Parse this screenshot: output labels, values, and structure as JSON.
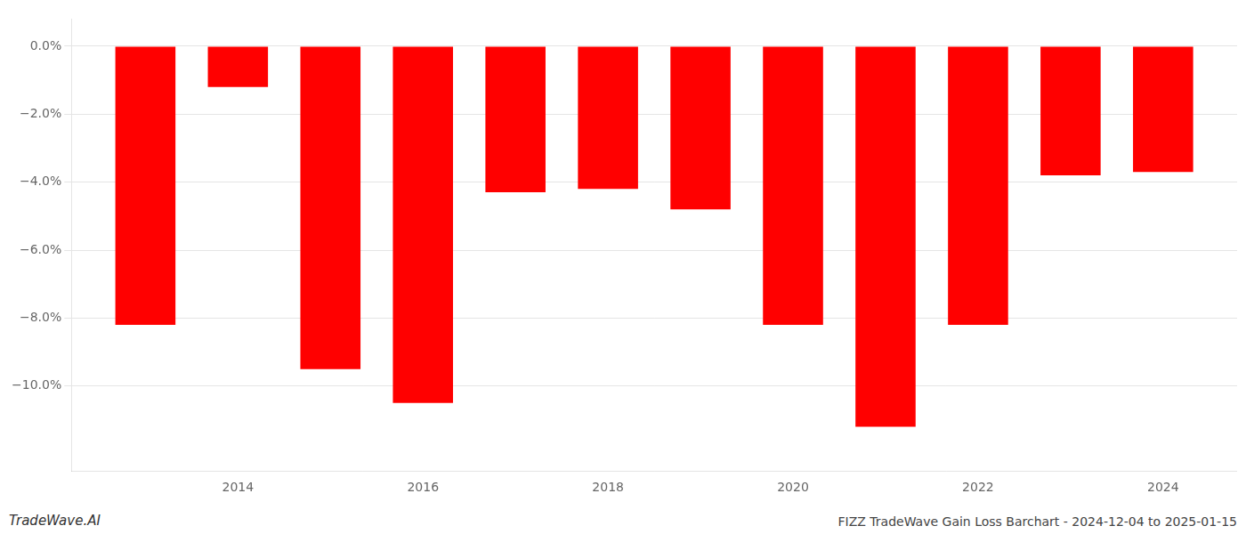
{
  "chart_data": {
    "type": "bar",
    "title": "FIZZ TradeWave Gain Loss Barchart - 2024-12-04 to 2025-01-15",
    "annotations": [
      "TradeWave.AI"
    ],
    "x": [
      2013,
      2014,
      2015,
      2016,
      2017,
      2018,
      2019,
      2020,
      2021,
      2022,
      2023,
      2024
    ],
    "values": [
      -8.2,
      -1.2,
      -9.5,
      -10.5,
      -4.3,
      -4.2,
      -4.8,
      -8.2,
      -11.2,
      -8.2,
      -3.8,
      -3.7
    ],
    "color": "#ff0000",
    "xlim": [
      2012.2,
      2024.8
    ],
    "xticks": [
      2014,
      2016,
      2018,
      2020,
      2022,
      2024
    ],
    "ylim": [
      -12.5,
      0.8
    ],
    "yticks": [
      {
        "value": 0.0,
        "label": "0.0%"
      },
      {
        "value": -2.0,
        "label": "−2.0%"
      },
      {
        "value": -4.0,
        "label": "−4.0%"
      },
      {
        "value": -6.0,
        "label": "−6.0%"
      },
      {
        "value": -8.0,
        "label": "−8.0%"
      },
      {
        "value": -10.0,
        "label": "−10.0%"
      }
    ],
    "grid": true
  }
}
